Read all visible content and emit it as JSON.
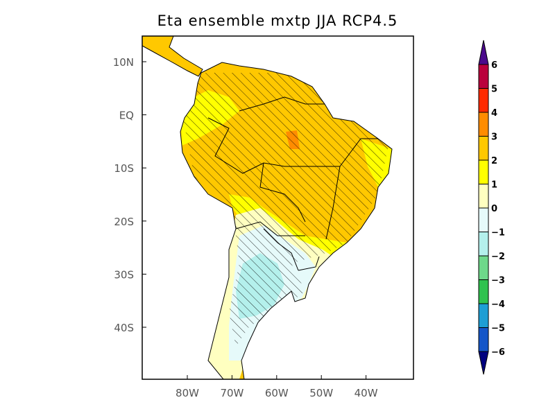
{
  "title": "Eta ensemble mxtp JJA RCP4.5",
  "lat_ticks": [
    "10N",
    "EQ",
    "10S",
    "20S",
    "30S",
    "40S"
  ],
  "lon_ticks": [
    "80W",
    "70W",
    "60W",
    "50W",
    "40W"
  ],
  "colorbar": {
    "labels": [
      "6",
      "5",
      "4",
      "3",
      "2",
      "1",
      "0",
      "−1",
      "−2",
      "−3",
      "−4",
      "−5",
      "−6"
    ],
    "colors": [
      "#ba003c",
      "#ff2a00",
      "#ff8c00",
      "#ffc800",
      "#ffff00",
      "#ffffc0",
      "#e6fafa",
      "#b4f0ec",
      "#6ed88a",
      "#2fc24f",
      "#1e9ed4",
      "#1556c8"
    ],
    "over_color": "#4b0a8c",
    "under_color": "#00007f"
  },
  "map_colors": {
    "ocean": "#ffffff",
    "hatch": "#000000"
  }
}
